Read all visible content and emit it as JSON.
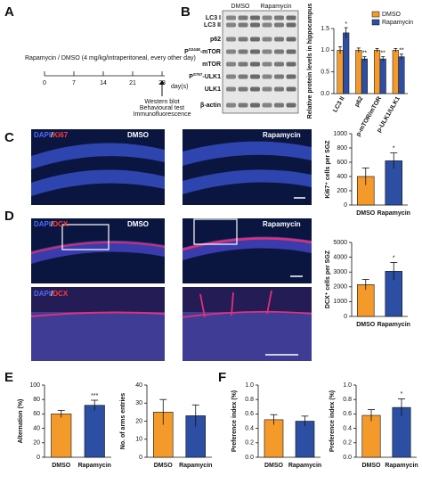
{
  "panel_labels": [
    "A",
    "B",
    "C",
    "D",
    "E",
    "F"
  ],
  "timeline": {
    "treatment": "Rapamycin / DMSO (4 mg/kg/intraperitoneal, every other day)",
    "days": [
      0,
      7,
      14,
      21,
      28
    ],
    "unit": "day(s)",
    "endpoints": [
      "Western blot",
      "Behavioural test",
      "Immunofluorescence"
    ]
  },
  "blot": {
    "groups": [
      "DMSO",
      "Rapamycin"
    ],
    "bands": [
      {
        "text": "LC3 I"
      },
      {
        "text": "LC3 II"
      },
      {
        "text": "p62"
      },
      {
        "text": "P",
        "sup": "S2448",
        "after": "-mTOR"
      },
      {
        "text": "mTOR"
      },
      {
        "text": "P",
        "sup": "S757",
        "after": "-ULK1"
      },
      {
        "text": "ULK1"
      },
      {
        "text": "β-actin"
      }
    ]
  },
  "images": {
    "separator": "/",
    "groups": [
      "DMSO",
      "Rapamycin"
    ],
    "C": {
      "stain": [
        "DAPI",
        "Ki67"
      ]
    },
    "D": {
      "stain": [
        "DAPI",
        "DCX"
      ]
    }
  },
  "chart_data": [
    {
      "type": "grouped_bar",
      "ylabel": "Relative protein levels in hippocampus",
      "categories": [
        "LC3 II",
        "p62",
        "p-mTOR/mTOR",
        "p-ULK1/ULK1"
      ],
      "series": [
        {
          "name": "DMSO",
          "color": "#f39a2b",
          "values": [
            1.0,
            1.0,
            1.0,
            1.0
          ],
          "errors": [
            0.08,
            0.05,
            0.04,
            0.04
          ]
        },
        {
          "name": "Rapamycin",
          "color": "#2c4ea3",
          "values": [
            1.4,
            0.8,
            0.8,
            0.85
          ],
          "errors": [
            0.12,
            0.05,
            0.05,
            0.06
          ]
        }
      ],
      "annotations": [
        "*",
        "**",
        "**",
        "**"
      ],
      "ylim": [
        0,
        1.5
      ],
      "yticks": [
        {
          "value": 0,
          "label": "0.0"
        },
        {
          "value": 0.5,
          "label": "0.5"
        },
        {
          "value": 1,
          "label": "1.0"
        },
        {
          "value": 1.5,
          "label": "1.5"
        }
      ],
      "legend": "top-right"
    },
    {
      "type": "bar",
      "ylabel": "Ki67⁺ cells per SGZ",
      "categories": [
        "DMSO",
        "Rapamycin"
      ],
      "values": [
        400,
        620
      ],
      "errors": [
        120,
        110
      ],
      "colors": [
        "#f39a2b",
        "#2c4ea3"
      ],
      "annotations": [
        null,
        "*"
      ],
      "ylim": [
        0,
        1000
      ],
      "yticks": [
        0,
        200,
        400,
        600,
        800,
        1000
      ]
    },
    {
      "type": "bar",
      "ylabel": "DCX⁺ cells per SGZ",
      "categories": [
        "DMSO",
        "Rapamycin"
      ],
      "values": [
        2150,
        3050
      ],
      "errors": [
        350,
        600
      ],
      "colors": [
        "#f39a2b",
        "#2c4ea3"
      ],
      "annotations": [
        null,
        "*"
      ],
      "ylim": [
        0,
        5000
      ],
      "yticks": [
        0,
        1000,
        2000,
        3000,
        4000,
        5000
      ]
    },
    {
      "type": "bar",
      "ylabel": "Alternation (%)",
      "categories": [
        "DMSO",
        "Rapamycin"
      ],
      "values": [
        60,
        72
      ],
      "errors": [
        5,
        7
      ],
      "colors": [
        "#f39a2b",
        "#2c4ea3"
      ],
      "annotations": [
        null,
        "***"
      ],
      "ylim": [
        0,
        100
      ],
      "yticks": [
        0,
        20,
        40,
        60,
        80,
        100
      ]
    },
    {
      "type": "bar",
      "ylabel": "No. of arms entries",
      "categories": [
        "DMSO",
        "Rapamycin"
      ],
      "values": [
        25,
        23
      ],
      "errors": [
        7,
        6
      ],
      "colors": [
        "#f39a2b",
        "#2c4ea3"
      ],
      "annotations": [
        null,
        null
      ],
      "ylim": [
        0,
        40
      ],
      "yticks": [
        0,
        10,
        20,
        30,
        40
      ]
    },
    {
      "type": "bar",
      "ylabel": "Preference index (%)",
      "categories": [
        "DMSO",
        "Rapamycin"
      ],
      "values": [
        0.52,
        0.5
      ],
      "errors": [
        0.07,
        0.07
      ],
      "colors": [
        "#f39a2b",
        "#2c4ea3"
      ],
      "annotations": [
        null,
        null
      ],
      "ylim": [
        0,
        1
      ],
      "yticks": [
        {
          "value": 0,
          "label": "0.0"
        },
        {
          "value": 0.2,
          "label": "0.2"
        },
        {
          "value": 0.4,
          "label": "0.4"
        },
        {
          "value": 0.6,
          "label": "0.6"
        },
        {
          "value": 0.8,
          "label": "0.8"
        },
        {
          "value": 1,
          "label": "1.0"
        }
      ]
    },
    {
      "type": "bar",
      "ylabel": "Preference index (%)",
      "categories": [
        "DMSO",
        "Rapamycin"
      ],
      "values": [
        0.58,
        0.69
      ],
      "errors": [
        0.08,
        0.12
      ],
      "colors": [
        "#f39a2b",
        "#2c4ea3"
      ],
      "annotations": [
        null,
        "*"
      ],
      "ylim": [
        0,
        1
      ],
      "yticks": [
        {
          "value": 0,
          "label": "0.0"
        },
        {
          "value": 0.2,
          "label": "0.2"
        },
        {
          "value": 0.4,
          "label": "0.4"
        },
        {
          "value": 0.6,
          "label": "0.6"
        },
        {
          "value": 0.8,
          "label": "0.8"
        },
        {
          "value": 1,
          "label": "1.0"
        }
      ]
    }
  ]
}
